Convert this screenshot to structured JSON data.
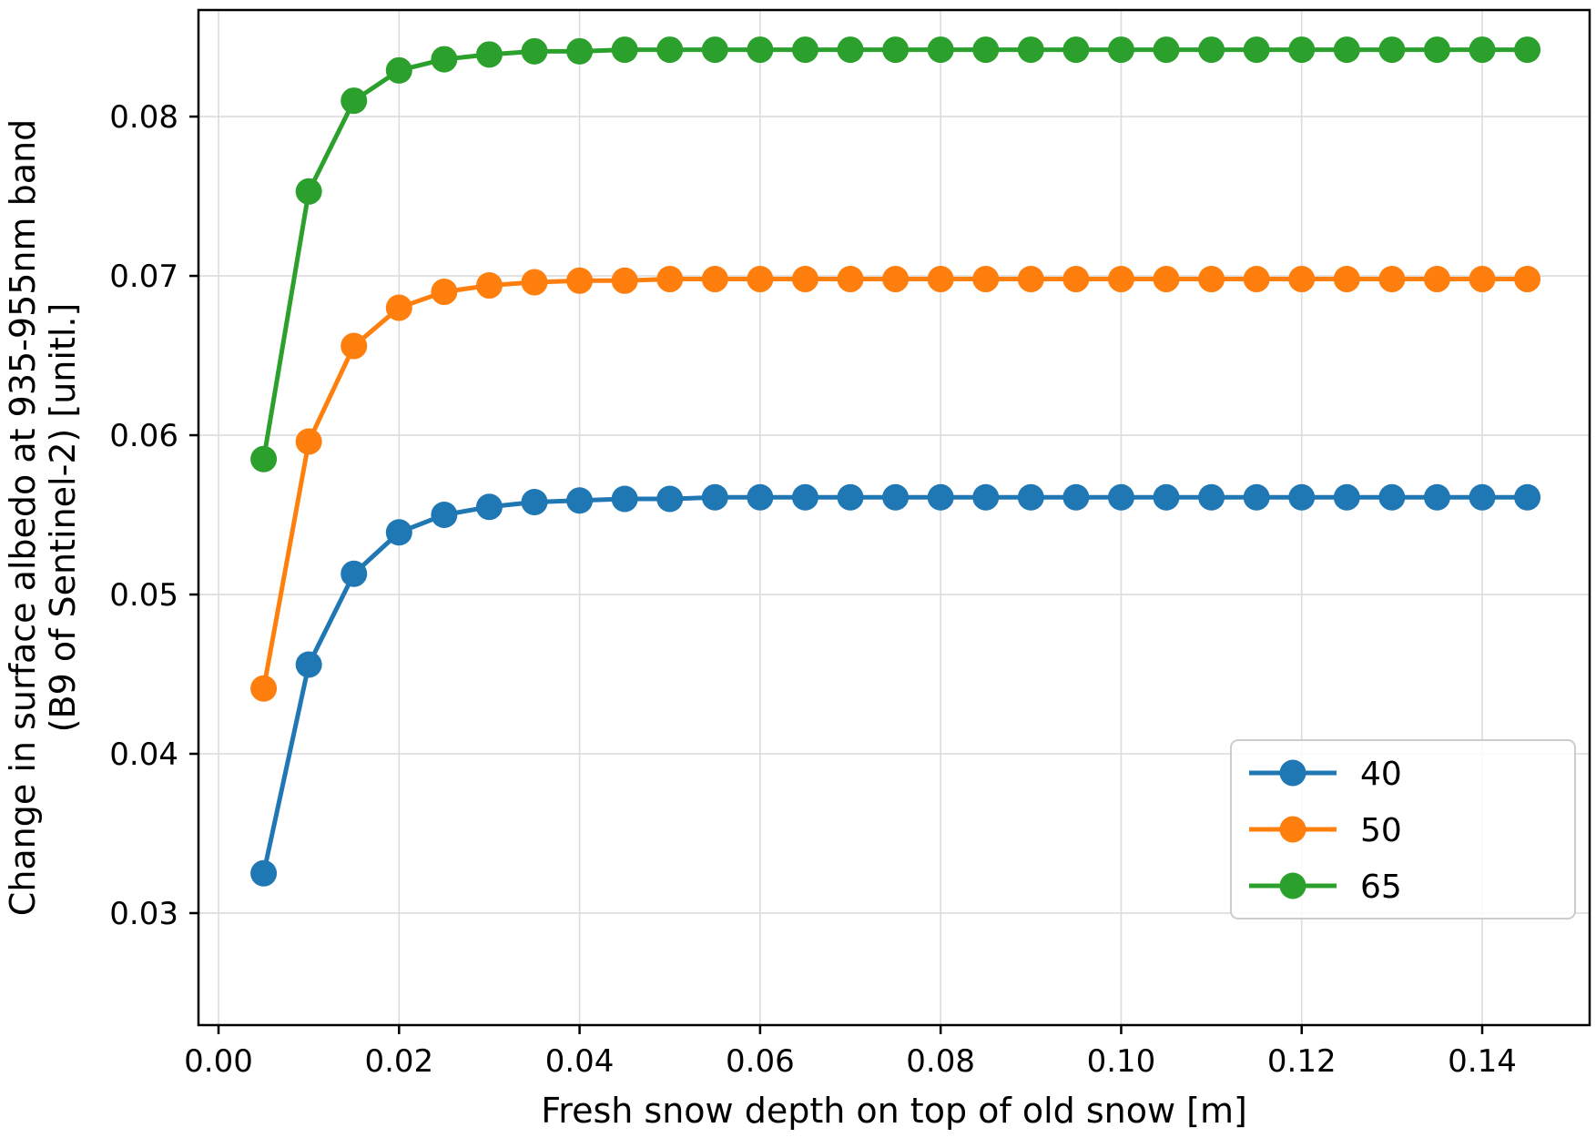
{
  "chart_data": {
    "type": "line",
    "title": "",
    "xlabel": "Fresh snow depth on top of old snow [m]",
    "ylabel_lines": [
      "Change in surface albedo at 935-955nm band",
      "(B9 of Sentinel-2) [unitl.]"
    ],
    "grid": true,
    "legend": {
      "position": "lower right",
      "entries": [
        "40",
        "50",
        "65"
      ]
    },
    "xlim": [
      -0.00222,
      0.1519
    ],
    "ylim": [
      0.02297,
      0.08669
    ],
    "xticks": {
      "values": [
        0.0,
        0.02,
        0.04,
        0.06,
        0.08,
        0.1,
        0.12,
        0.14
      ],
      "labels": [
        "0.00",
        "0.02",
        "0.04",
        "0.06",
        "0.08",
        "0.10",
        "0.12",
        "0.14"
      ]
    },
    "yticks": {
      "values": [
        0.03,
        0.04,
        0.05,
        0.06,
        0.07,
        0.08
      ],
      "labels": [
        "0.03",
        "0.04",
        "0.05",
        "0.06",
        "0.07",
        "0.08"
      ]
    },
    "x": [
      0.005,
      0.01,
      0.015,
      0.02,
      0.025,
      0.03,
      0.035,
      0.04,
      0.045,
      0.05,
      0.055,
      0.06,
      0.065,
      0.07,
      0.075,
      0.08,
      0.085,
      0.09,
      0.095,
      0.1,
      0.105,
      0.11,
      0.115,
      0.12,
      0.125,
      0.13,
      0.135,
      0.14,
      0.145
    ],
    "series": [
      {
        "name": "40",
        "color": "#1f77b4",
        "values": [
          0.0325,
          0.0456,
          0.0513,
          0.0539,
          0.055,
          0.0555,
          0.0558,
          0.0559,
          0.056,
          0.056,
          0.0561,
          0.0561,
          0.0561,
          0.0561,
          0.0561,
          0.0561,
          0.0561,
          0.0561,
          0.0561,
          0.0561,
          0.0561,
          0.0561,
          0.0561,
          0.0561,
          0.0561,
          0.0561,
          0.0561,
          0.0561,
          0.0561
        ]
      },
      {
        "name": "50",
        "color": "#ff7f0e",
        "values": [
          0.0441,
          0.0596,
          0.0656,
          0.068,
          0.069,
          0.0694,
          0.0696,
          0.0697,
          0.0697,
          0.0698,
          0.0698,
          0.0698,
          0.0698,
          0.0698,
          0.0698,
          0.0698,
          0.0698,
          0.0698,
          0.0698,
          0.0698,
          0.0698,
          0.0698,
          0.0698,
          0.0698,
          0.0698,
          0.0698,
          0.0698,
          0.0698,
          0.0698
        ]
      },
      {
        "name": "65",
        "color": "#2ca02c",
        "values": [
          0.0585,
          0.0753,
          0.081,
          0.0829,
          0.0836,
          0.0839,
          0.0841,
          0.0841,
          0.0842,
          0.0842,
          0.0842,
          0.0842,
          0.0842,
          0.0842,
          0.0842,
          0.0842,
          0.0842,
          0.0842,
          0.0842,
          0.0842,
          0.0842,
          0.0842,
          0.0842,
          0.0842,
          0.0842,
          0.0842,
          0.0842,
          0.0842,
          0.0842
        ]
      }
    ],
    "colors": {
      "background": "#ffffff",
      "grid": "#dcdcdc",
      "axis": "#000000",
      "legend_border": "#cccccc",
      "legend_background": "#ffffff"
    }
  }
}
